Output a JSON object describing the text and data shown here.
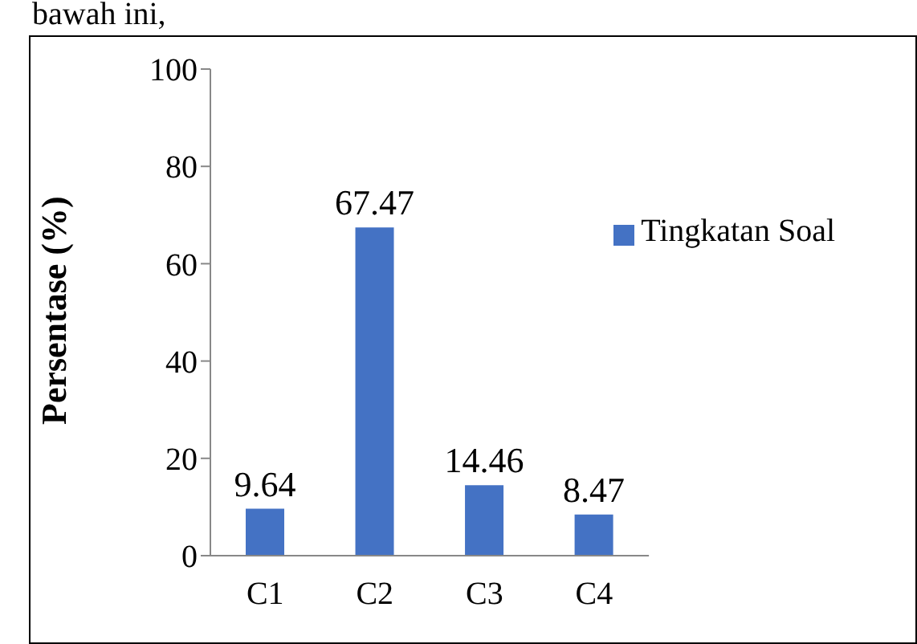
{
  "chart_data": {
    "type": "bar",
    "ylabel": "Persentase (%)",
    "categories": [
      "C1",
      "C2",
      "C3",
      "C4"
    ],
    "series": [
      {
        "name": "Tingkatan Soal",
        "color": "#4472c4",
        "values": [
          9.64,
          67.47,
          14.46,
          8.47
        ]
      }
    ],
    "ylim": [
      0,
      100
    ],
    "yticks": [
      0,
      20,
      40,
      60,
      80,
      100
    ],
    "data_labels": true,
    "legend": "right",
    "grid": false,
    "annotations": [
      "bawah ini,"
    ]
  }
}
